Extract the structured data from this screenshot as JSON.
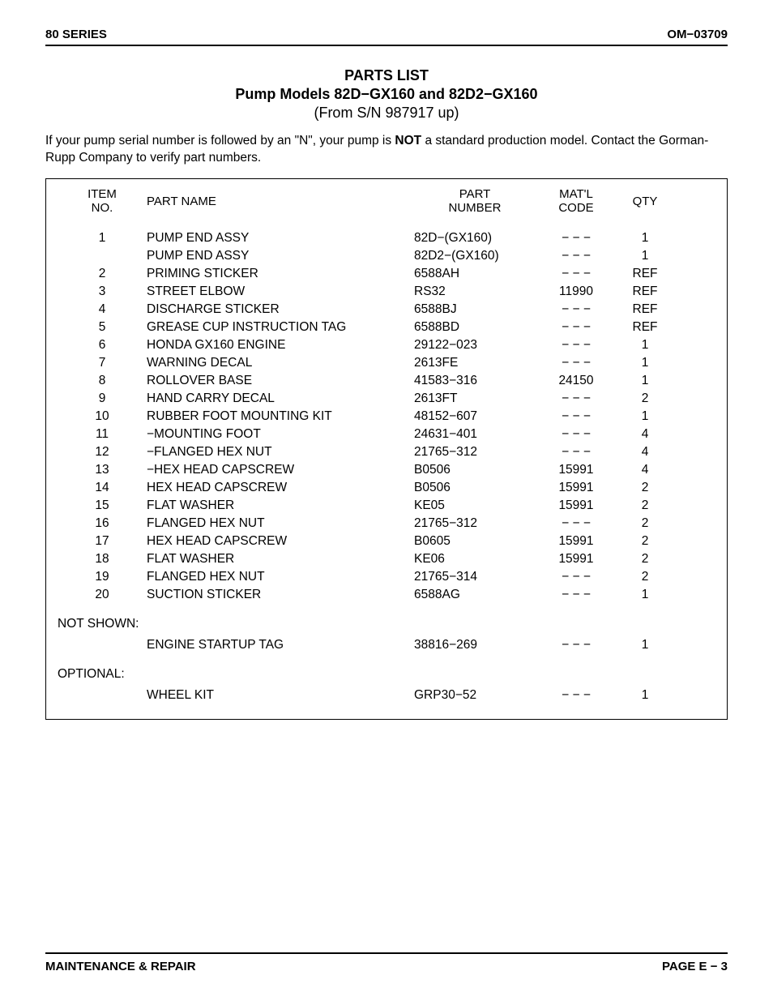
{
  "header": {
    "left": "80 SERIES",
    "right": "OM−03709"
  },
  "title": {
    "line1": "PARTS LIST",
    "line2": "Pump Models 82D−GX160 and 82D2−GX160",
    "line3": "(From S/N 987917 up)"
  },
  "note": {
    "pre": "If your pump serial number is followed by an \"N\", your pump is ",
    "bold": "NOT",
    "post": " a standard production model. Contact the Gorman-Rupp Company to verify part numbers."
  },
  "columns": {
    "item1": "ITEM",
    "item2": "NO.",
    "name": "PART NAME",
    "part1": "PART",
    "part2": "NUMBER",
    "matl1": "MAT'L",
    "matl2": "CODE",
    "qty": "QTY"
  },
  "rows": [
    {
      "item": "1",
      "name": "PUMP END ASSY",
      "part": "82D−(GX160)",
      "matl": "− − −",
      "qty": "1"
    },
    {
      "item": "",
      "name": "PUMP END ASSY",
      "part": "82D2−(GX160)",
      "matl": "− − −",
      "qty": "1"
    },
    {
      "item": "2",
      "name": "PRIMING STICKER",
      "part": "6588AH",
      "matl": "− − −",
      "qty": "REF"
    },
    {
      "item": "3",
      "name": "STREET ELBOW",
      "part": "RS32",
      "matl": "11990",
      "qty": "REF"
    },
    {
      "item": "4",
      "name": "DISCHARGE STICKER",
      "part": "6588BJ",
      "matl": "− − −",
      "qty": "REF"
    },
    {
      "item": "5",
      "name": "GREASE CUP INSTRUCTION TAG",
      "part": "6588BD",
      "matl": "− − −",
      "qty": "REF"
    },
    {
      "item": "6",
      "name": "HONDA GX160 ENGINE",
      "part": "29122−023",
      "matl": "− − −",
      "qty": "1"
    },
    {
      "item": "7",
      "name": "WARNING DECAL",
      "part": "2613FE",
      "matl": "− − −",
      "qty": "1"
    },
    {
      "item": "8",
      "name": "ROLLOVER BASE",
      "part": "41583−316",
      "matl": "24150",
      "qty": "1"
    },
    {
      "item": "9",
      "name": "HAND CARRY DECAL",
      "part": "2613FT",
      "matl": "− − −",
      "qty": "2"
    },
    {
      "item": "10",
      "name": "RUBBER FOOT MOUNTING KIT",
      "part": "48152−607",
      "matl": "− − −",
      "qty": "1"
    },
    {
      "item": "11",
      "name": "−MOUNTING FOOT",
      "part": "24631−401",
      "matl": "− − −",
      "qty": "4"
    },
    {
      "item": "12",
      "name": "−FLANGED HEX NUT",
      "part": "21765−312",
      "matl": "− − −",
      "qty": "4"
    },
    {
      "item": "13",
      "name": "−HEX HEAD CAPSCREW",
      "part": "B0506",
      "matl": "15991",
      "qty": "4"
    },
    {
      "item": "14",
      "name": "HEX HEAD CAPSCREW",
      "part": "B0506",
      "matl": "15991",
      "qty": "2"
    },
    {
      "item": "15",
      "name": "FLAT WASHER",
      "part": "KE05",
      "matl": "15991",
      "qty": "2"
    },
    {
      "item": "16",
      "name": "FLANGED HEX NUT",
      "part": "21765−312",
      "matl": "− − −",
      "qty": "2"
    },
    {
      "item": "17",
      "name": "HEX HEAD CAPSCREW",
      "part": "B0605",
      "matl": "15991",
      "qty": "2"
    },
    {
      "item": "18",
      "name": "FLAT WASHER",
      "part": "KE06",
      "matl": "15991",
      "qty": "2"
    },
    {
      "item": "19",
      "name": "FLANGED HEX NUT",
      "part": "21765−314",
      "matl": "− − −",
      "qty": "2"
    },
    {
      "item": "20",
      "name": "SUCTION STICKER",
      "part": "6588AG",
      "matl": "− − −",
      "qty": "1"
    }
  ],
  "not_shown_label": "NOT SHOWN:",
  "not_shown": [
    {
      "item": "",
      "name": "ENGINE STARTUP TAG",
      "part": "38816−269",
      "matl": "− − −",
      "qty": "1"
    }
  ],
  "optional_label": "OPTIONAL:",
  "optional": [
    {
      "item": "",
      "name": "WHEEL KIT",
      "part": "GRP30−52",
      "matl": "− − −",
      "qty": "1"
    }
  ],
  "footer": {
    "left": "MAINTENANCE & REPAIR",
    "right": "PAGE E − 3"
  }
}
